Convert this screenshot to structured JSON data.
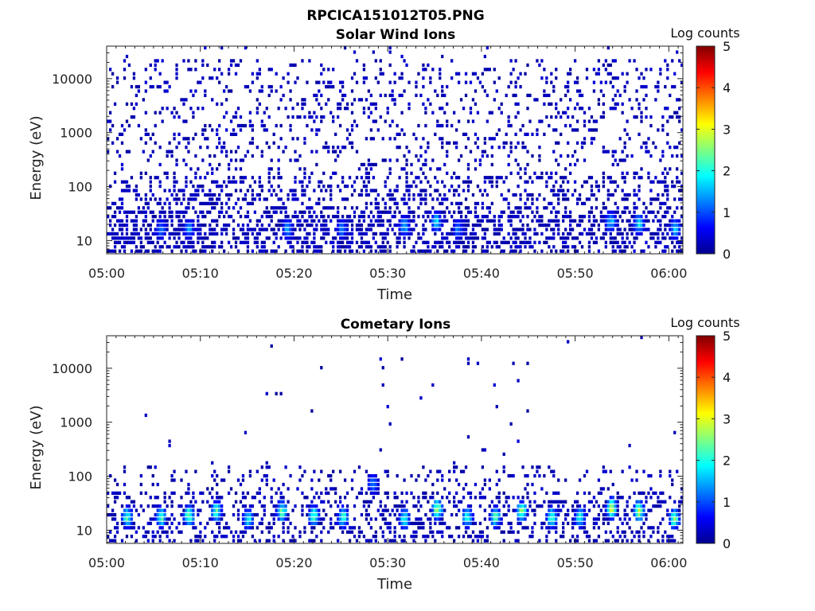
{
  "figure_title": "RPCICA151012T05.PNG",
  "colors": {
    "colormap": [
      "#00008f",
      "#0000ff",
      "#0080ff",
      "#00ffff",
      "#80ff80",
      "#ffff00",
      "#ff8000",
      "#ff0000",
      "#800000"
    ]
  },
  "chart_data": [
    {
      "type": "heatmap",
      "title": "Solar Wind Ions",
      "xlabel": "Time",
      "ylabel": "Energy (eV)",
      "x_tick_labels": [
        "05:00",
        "05:10",
        "05:20",
        "05:30",
        "05:40",
        "05:50",
        "06:00"
      ],
      "x_ticks_minutes": [
        0,
        10,
        20,
        30,
        40,
        50,
        60
      ],
      "xlim_minutes": [
        0,
        61.5
      ],
      "y_scale": "log",
      "y_tick_labels": [
        "10",
        "100",
        "1000",
        "10000"
      ],
      "y_ticks": [
        10,
        100,
        1000,
        10000
      ],
      "ylim": [
        5.7,
        40000
      ],
      "colorbar": {
        "label": "Log counts",
        "ticks": [
          "0",
          "1",
          "2",
          "3",
          "4",
          "5"
        ],
        "range": [
          0,
          5
        ]
      },
      "max_log_counts_approx": 2.0,
      "hotspots": [
        {
          "time_min": 5.8,
          "energy_eV": 16,
          "log_counts": 1.3
        },
        {
          "time_min": 8.8,
          "energy_eV": 16,
          "log_counts": 1.4
        },
        {
          "time_min": 19.3,
          "energy_eV": 16,
          "log_counts": 1.5
        },
        {
          "time_min": 25.1,
          "energy_eV": 16,
          "log_counts": 1.3
        },
        {
          "time_min": 31.8,
          "energy_eV": 18,
          "log_counts": 1.7
        },
        {
          "time_min": 35.2,
          "energy_eV": 22,
          "log_counts": 1.8
        },
        {
          "time_min": 37.5,
          "energy_eV": 16,
          "log_counts": 1.3
        },
        {
          "time_min": 53.8,
          "energy_eV": 22,
          "log_counts": 1.8
        },
        {
          "time_min": 56.8,
          "energy_eV": 20,
          "log_counts": 1.9
        },
        {
          "time_min": 60.7,
          "energy_eV": 16,
          "log_counts": 1.8
        }
      ]
    },
    {
      "type": "heatmap",
      "title": "Cometary Ions",
      "xlabel": "Time",
      "ylabel": "Energy (eV)",
      "x_tick_labels": [
        "05:00",
        "05:10",
        "05:20",
        "05:30",
        "05:40",
        "05:50",
        "06:00"
      ],
      "x_ticks_minutes": [
        0,
        10,
        20,
        30,
        40,
        50,
        60
      ],
      "xlim_minutes": [
        0,
        61.5
      ],
      "y_scale": "log",
      "y_tick_labels": [
        "10",
        "100",
        "1000",
        "10000"
      ],
      "y_ticks": [
        10,
        100,
        1000,
        10000
      ],
      "ylim": [
        5.7,
        40000
      ],
      "colorbar": {
        "label": "Log counts",
        "ticks": [
          "0",
          "1",
          "2",
          "3",
          "4",
          "5"
        ],
        "range": [
          0,
          5
        ]
      },
      "max_log_counts_approx": 3.0,
      "hotspots": [
        {
          "time_min": 2.2,
          "energy_eV": 17,
          "log_counts": 2.3
        },
        {
          "time_min": 5.8,
          "energy_eV": 17,
          "log_counts": 2.4
        },
        {
          "time_min": 8.8,
          "energy_eV": 18,
          "log_counts": 2.6
        },
        {
          "time_min": 11.7,
          "energy_eV": 22,
          "log_counts": 2.3
        },
        {
          "time_min": 15.1,
          "energy_eV": 16,
          "log_counts": 2.1
        },
        {
          "time_min": 18.7,
          "energy_eV": 22,
          "log_counts": 2.5
        },
        {
          "time_min": 22.1,
          "energy_eV": 18,
          "log_counts": 2.4
        },
        {
          "time_min": 25.2,
          "energy_eV": 17,
          "log_counts": 2.3
        },
        {
          "time_min": 28.4,
          "energy_eV": 70,
          "log_counts": 1.4
        },
        {
          "time_min": 31.8,
          "energy_eV": 16,
          "log_counts": 2.2
        },
        {
          "time_min": 35.3,
          "energy_eV": 24,
          "log_counts": 2.9
        },
        {
          "time_min": 38.5,
          "energy_eV": 17,
          "log_counts": 2.2
        },
        {
          "time_min": 41.5,
          "energy_eV": 17,
          "log_counts": 2.3
        },
        {
          "time_min": 44.3,
          "energy_eV": 22,
          "log_counts": 2.6
        },
        {
          "time_min": 47.5,
          "energy_eV": 17,
          "log_counts": 2.3
        },
        {
          "time_min": 50.5,
          "energy_eV": 17,
          "log_counts": 2.1
        },
        {
          "time_min": 53.9,
          "energy_eV": 25,
          "log_counts": 3.0
        },
        {
          "time_min": 56.8,
          "energy_eV": 22,
          "log_counts": 2.9
        },
        {
          "time_min": 60.6,
          "energy_eV": 16,
          "log_counts": 2.5
        }
      ]
    }
  ]
}
